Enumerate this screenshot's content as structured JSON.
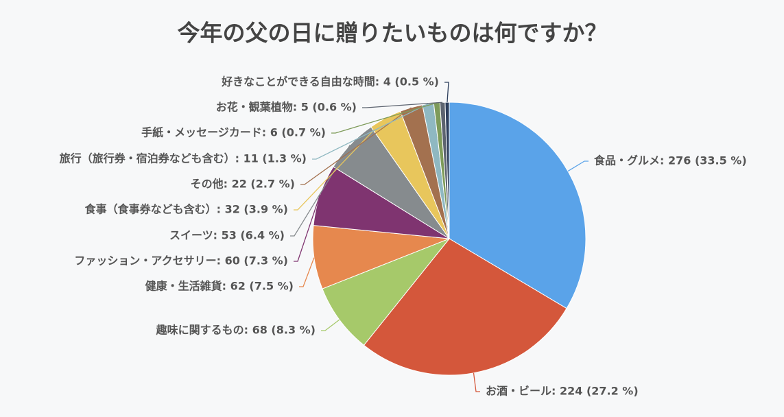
{
  "chart_data": {
    "type": "pie",
    "title": "今年の父の日に贈りたいものは何ですか？",
    "values": [
      276,
      224,
      68,
      62,
      60,
      53,
      32,
      22,
      11,
      6,
      5,
      4
    ],
    "value_labels": [
      "食品・グルメ: 276 (33.5 %)",
      "お酒・ビール: 224 (27.2 %)",
      "趣味に関するもの: 68 (8.3 %)",
      "健康・生活雑貨: 62 (7.5 %)",
      "ファッション・アクセサリー: 60 (7.3 %)",
      "スイーツ: 53 (6.4 %)",
      "食事（食事券なども含む）: 32 (3.9 %)",
      "その他: 22 (2.7 %)",
      "旅行（旅行券・宿泊券なども含む）: 11 (1.3 %)",
      "手紙・メッセージカード: 6 (0.7 %)",
      "お花・観葉植物: 5 (0.6 %)",
      "好きなことができる自由な時間: 4 (0.5 %)"
    ],
    "colors": [
      "#5aa3e9",
      "#d4573b",
      "#a6c96a",
      "#e6884e",
      "#7f3470",
      "#868b8e",
      "#e8c65c",
      "#a3714f",
      "#8fb8c1",
      "#7e9b5a",
      "#5d6470",
      "#2c3e5c"
    ]
  }
}
